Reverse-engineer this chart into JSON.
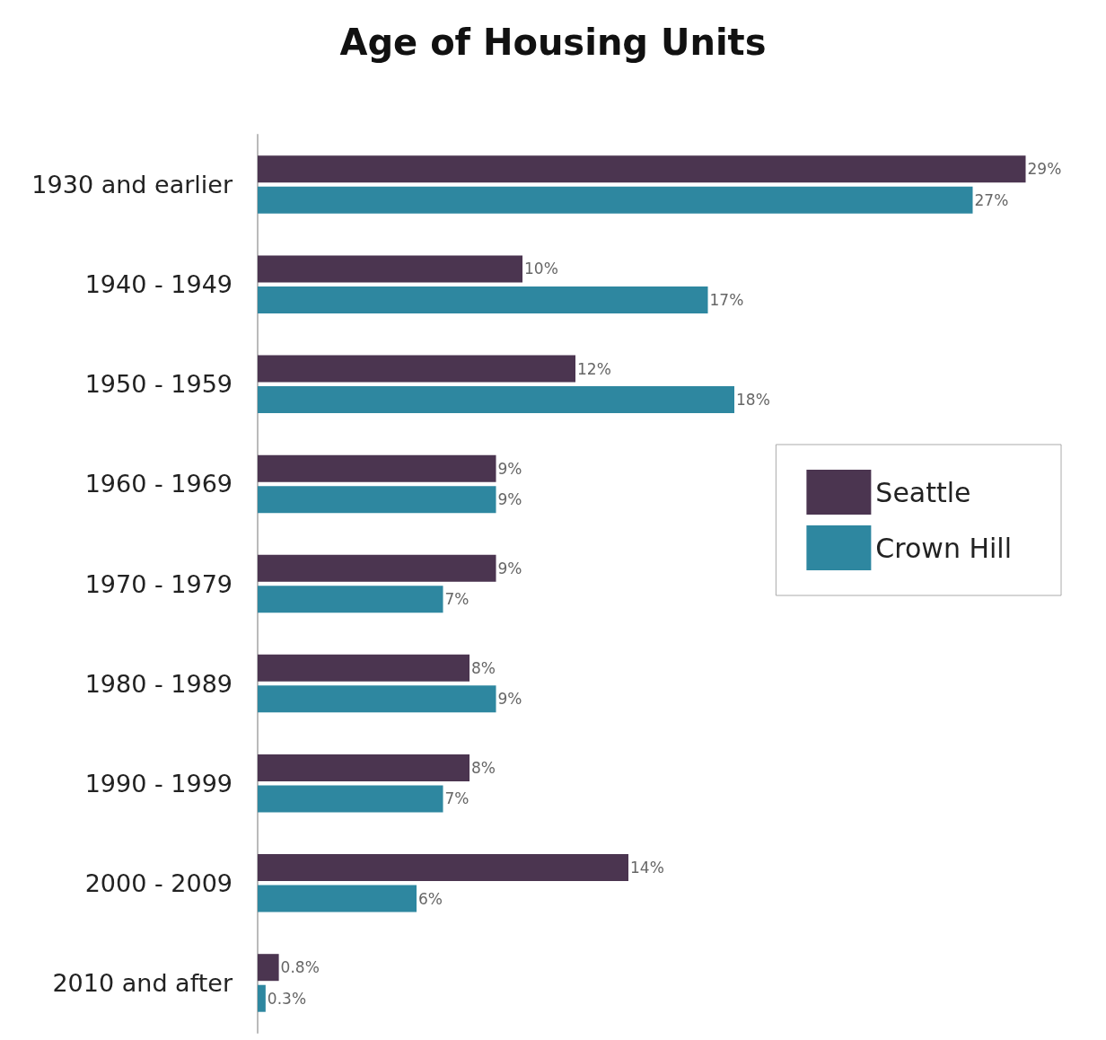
{
  "chart_data": {
    "type": "bar",
    "orientation": "horizontal",
    "title": "Age of Housing Units",
    "categories": [
      "1930 and earlier",
      "1940 - 1949",
      "1950 - 1959",
      "1960 - 1969",
      "1970 - 1979",
      "1980 - 1989",
      "1990 - 1999",
      "2000 - 2009",
      "2010 and after"
    ],
    "series": [
      {
        "name": "Seattle",
        "color": "#4b3550",
        "values": [
          29,
          10,
          12,
          9,
          9,
          8,
          8,
          14,
          0.8
        ],
        "value_labels": [
          "29%",
          "10%",
          "12%",
          "9%",
          "9%",
          "8%",
          "8%",
          "14%",
          "0.8%"
        ]
      },
      {
        "name": "Crown Hill",
        "color": "#2e87a0",
        "values": [
          27,
          17,
          18,
          9,
          7,
          9,
          7,
          6,
          0.3
        ],
        "value_labels": [
          "27%",
          "17%",
          "18%",
          "9%",
          "7%",
          "9%",
          "7%",
          "6%",
          "0.3%"
        ]
      }
    ],
    "legend": "right"
  }
}
